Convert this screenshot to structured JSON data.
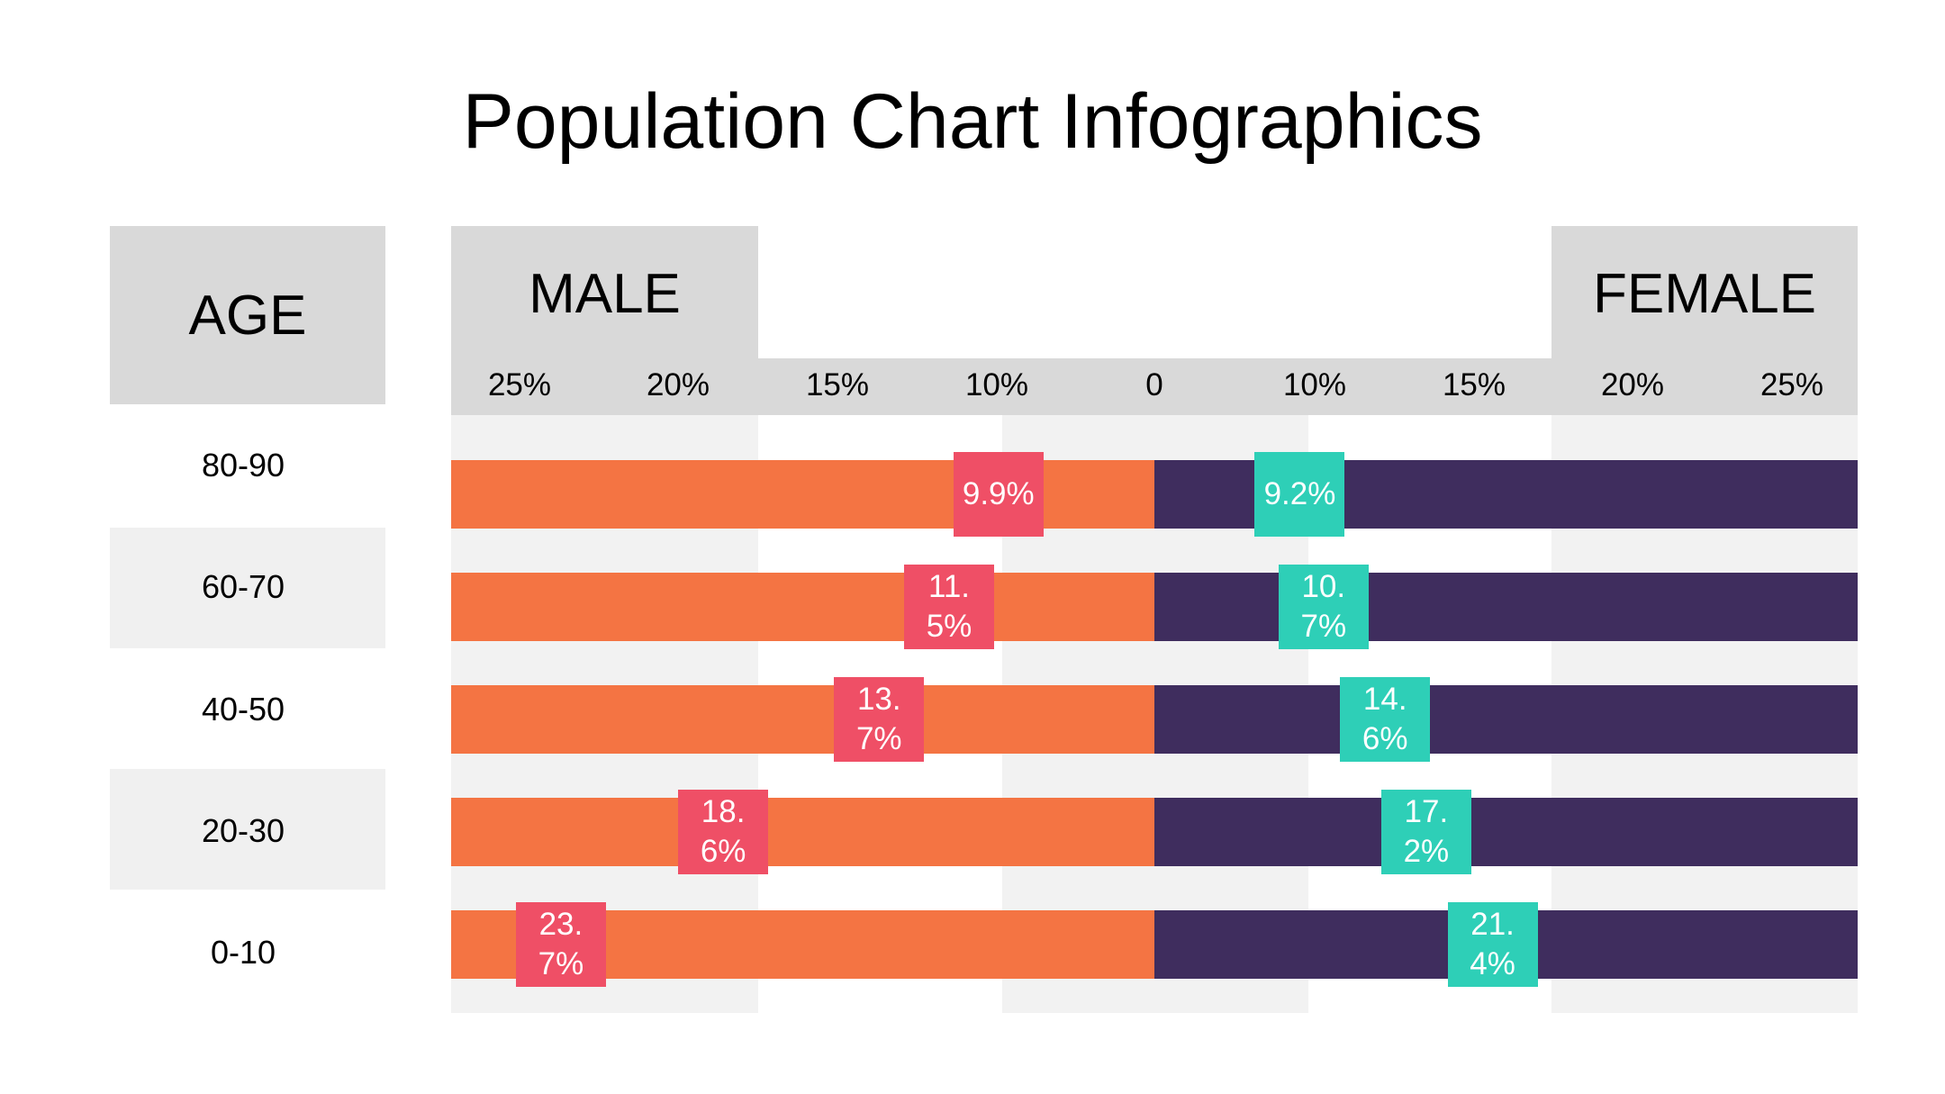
{
  "title": "Population Chart Infographics",
  "age_header": "AGE",
  "male_header": "MALE",
  "female_header": "FEMALE",
  "colors": {
    "male_bar": "#f47443",
    "female_bar": "#3f2d5e",
    "male_label": "#ef4f66",
    "female_label": "#2ecfb7"
  },
  "chart_data": {
    "type": "bar",
    "orientation": "horizontal",
    "categories": [
      "80-90",
      "60-70",
      "40-50",
      "20-30",
      "0-10"
    ],
    "series": [
      {
        "name": "MALE",
        "values": [
          9.9,
          11.5,
          13.7,
          18.6,
          23.7
        ],
        "labels": [
          "9.9%",
          "11.5%",
          "13.7%",
          "18.6%",
          "23.7%"
        ]
      },
      {
        "name": "FEMALE",
        "values": [
          9.2,
          10.7,
          14.6,
          17.2,
          21.4
        ],
        "labels": [
          "9.2%",
          "10.7%",
          "14.6%",
          "17.2%",
          "21.4%"
        ]
      }
    ],
    "male_ticks": [
      "25%",
      "20%",
      "15%",
      "10%",
      "0"
    ],
    "female_ticks": [
      "10%",
      "15%",
      "20%",
      "25%"
    ],
    "legend": "none",
    "grid": false
  }
}
